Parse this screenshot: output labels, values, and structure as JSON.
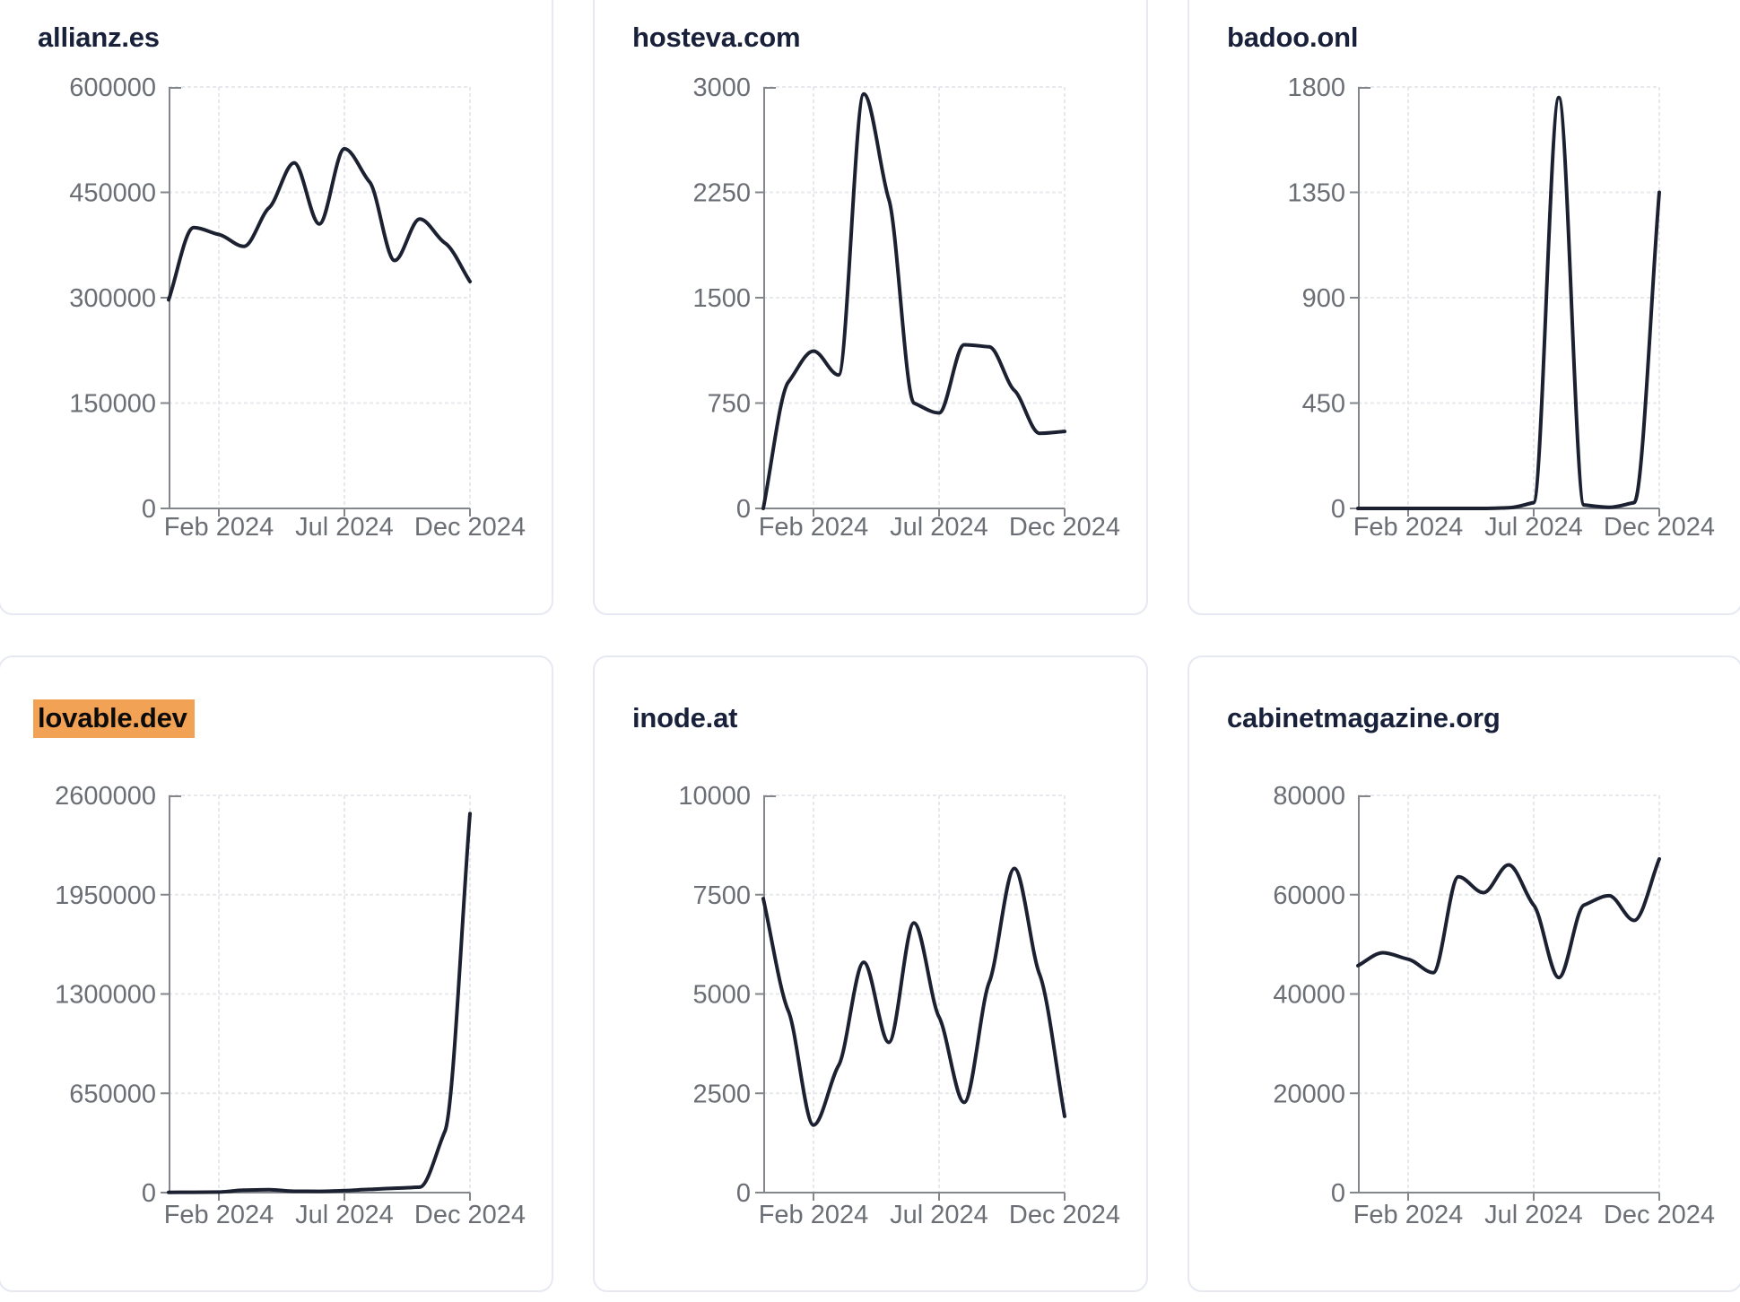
{
  "page": {
    "background": "#ffffff",
    "card_border_color": "#e7e9f2",
    "line_color": "#1c2132",
    "axis_color": "#83868b",
    "grid_color": "#e7e8eb",
    "tick_label_color": "#6b6f75",
    "title_color": "#18203a",
    "highlight_color": "#f2a254"
  },
  "chart_data": [
    {
      "type": "line",
      "title": "allianz.es",
      "title_highlight": false,
      "x": [
        "Dec 2023",
        "Jan 2024",
        "Feb 2024",
        "Mar 2024",
        "Apr 2024",
        "May 2024",
        "Jun 2024",
        "Jul 2024",
        "Aug 2024",
        "Sep 2024",
        "Oct 2024",
        "Nov 2024",
        "Dec 2024"
      ],
      "values": [
        297000,
        400000,
        390000,
        373000,
        428000,
        492000,
        405000,
        512000,
        465000,
        353000,
        412000,
        378000,
        323000
      ],
      "ylim": [
        0,
        600000
      ],
      "y_ticks": [
        0,
        150000,
        300000,
        450000,
        600000
      ],
      "x_tick_labels": [
        "Feb 2024",
        "Jul 2024",
        "Dec 2024"
      ],
      "x_tick_indices": [
        2,
        7,
        12
      ],
      "grid": true,
      "legend": "none"
    },
    {
      "type": "line",
      "title": "hosteva.com",
      "title_highlight": false,
      "x": [
        "Dec 2023",
        "Jan 2024",
        "Feb 2024",
        "Mar 2024",
        "Apr 2024",
        "May 2024",
        "Jun 2024",
        "Jul 2024",
        "Aug 2024",
        "Sep 2024",
        "Oct 2024",
        "Nov 2024",
        "Dec 2024"
      ],
      "values": [
        0,
        900,
        1120,
        950,
        2950,
        2200,
        750,
        680,
        1165,
        1150,
        840,
        535,
        548
      ],
      "ylim": [
        0,
        3000
      ],
      "y_ticks": [
        0,
        750,
        1500,
        2250,
        3000
      ],
      "x_tick_labels": [
        "Feb 2024",
        "Jul 2024",
        "Dec 2024"
      ],
      "x_tick_indices": [
        2,
        7,
        12
      ],
      "grid": true,
      "legend": "none"
    },
    {
      "type": "line",
      "title": "badoo.onl",
      "title_highlight": false,
      "x": [
        "Dec 2023",
        "Jan 2024",
        "Feb 2024",
        "Mar 2024",
        "Apr 2024",
        "May 2024",
        "Jun 2024",
        "Jul 2024",
        "Aug 2024",
        "Sep 2024",
        "Oct 2024",
        "Nov 2024",
        "Dec 2024"
      ],
      "values": [
        0,
        0,
        0,
        0,
        0,
        0,
        3,
        25,
        1755,
        15,
        5,
        25,
        1350
      ],
      "ylim": [
        0,
        1800
      ],
      "y_ticks": [
        0,
        450,
        900,
        1350,
        1800
      ],
      "x_tick_labels": [
        "Feb 2024",
        "Jul 2024",
        "Dec 2024"
      ],
      "x_tick_indices": [
        2,
        7,
        12
      ],
      "grid": true,
      "legend": "none"
    },
    {
      "type": "line",
      "title": "lovable.dev",
      "title_highlight": true,
      "x": [
        "Dec 2023",
        "Jan 2024",
        "Feb 2024",
        "Mar 2024",
        "Apr 2024",
        "May 2024",
        "Jun 2024",
        "Jul 2024",
        "Aug 2024",
        "Sep 2024",
        "Oct 2024",
        "Nov 2024",
        "Dec 2024"
      ],
      "values": [
        1500,
        2500,
        3500,
        16000,
        19000,
        9000,
        8000,
        13000,
        21000,
        29000,
        36000,
        400000,
        2480000
      ],
      "ylim": [
        0,
        2600000
      ],
      "y_ticks": [
        0,
        650000,
        1300000,
        1950000,
        2600000
      ],
      "x_tick_labels": [
        "Feb 2024",
        "Jul 2024",
        "Dec 2024"
      ],
      "x_tick_indices": [
        2,
        7,
        12
      ],
      "grid": true,
      "legend": "none"
    },
    {
      "type": "line",
      "title": "inode.at",
      "title_highlight": false,
      "x": [
        "Dec 2023",
        "Jan 2024",
        "Feb 2024",
        "Mar 2024",
        "Apr 2024",
        "May 2024",
        "Jun 2024",
        "Jul 2024",
        "Aug 2024",
        "Sep 2024",
        "Oct 2024",
        "Nov 2024",
        "Dec 2024"
      ],
      "values": [
        7400,
        4570,
        1700,
        3200,
        5800,
        3780,
        6790,
        4420,
        2270,
        5300,
        8160,
        5500,
        1920
      ],
      "ylim": [
        0,
        10000
      ],
      "y_ticks": [
        0,
        2500,
        5000,
        7500,
        10000
      ],
      "x_tick_labels": [
        "Feb 2024",
        "Jul 2024",
        "Dec 2024"
      ],
      "x_tick_indices": [
        2,
        7,
        12
      ],
      "grid": true,
      "legend": "none"
    },
    {
      "type": "line",
      "title": "cabinetmagazine.org",
      "title_highlight": false,
      "x": [
        "Dec 2023",
        "Jan 2024",
        "Feb 2024",
        "Mar 2024",
        "Apr 2024",
        "May 2024",
        "Jun 2024",
        "Jul 2024",
        "Aug 2024",
        "Sep 2024",
        "Oct 2024",
        "Nov 2024",
        "Dec 2024"
      ],
      "values": [
        45700,
        48300,
        47000,
        44300,
        63600,
        60400,
        66000,
        57900,
        43300,
        57900,
        59800,
        54800,
        67200
      ],
      "ylim": [
        0,
        80000
      ],
      "y_ticks": [
        0,
        20000,
        40000,
        60000,
        80000
      ],
      "x_tick_labels": [
        "Feb 2024",
        "Jul 2024",
        "Dec 2024"
      ],
      "x_tick_indices": [
        2,
        7,
        12
      ],
      "grid": true,
      "legend": "none"
    }
  ]
}
